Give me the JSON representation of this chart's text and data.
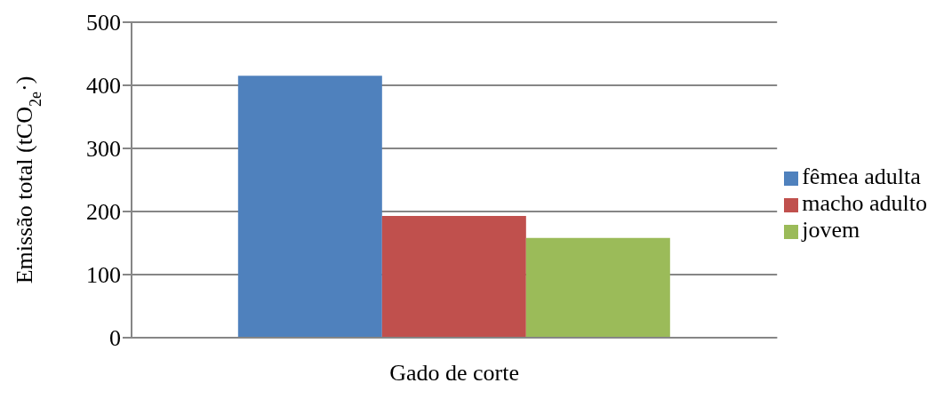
{
  "chart_data": {
    "type": "bar",
    "ylabel": "Emissão total (tCO$_{2e}$·)",
    "categories": [
      "Gado de corte"
    ],
    "series": [
      {
        "name": "fêmea adulta",
        "color": "#4f81bd",
        "values": [
          415
        ]
      },
      {
        "name": "macho adulto",
        "color": "#c0504d",
        "values": [
          193
        ]
      },
      {
        "name": "jovem",
        "color": "#9bbb59",
        "values": [
          158
        ]
      }
    ],
    "ylim": [
      0,
      500
    ],
    "yticks": [
      0,
      100,
      200,
      300,
      400,
      500
    ],
    "grid": "y",
    "legend": "right"
  }
}
